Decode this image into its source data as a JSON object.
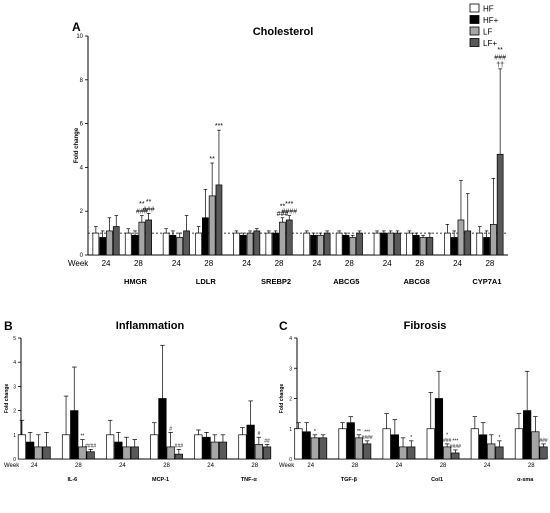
{
  "figure": {
    "bar_colors": [
      "#ffffff",
      "#000000",
      "#a6a6a6",
      "#595959"
    ]
  },
  "chart_data": [
    {
      "id": "A",
      "type": "bar",
      "panel_letter": "A",
      "title": "Cholesterol",
      "ylabel": "Fold change",
      "ylim": [
        0,
        10
      ],
      "yticks": [
        0,
        2,
        4,
        6,
        8,
        10
      ],
      "reference_line": 1,
      "week_label": "Week",
      "legend": {
        "placement": "top-right",
        "entries": [
          {
            "name": "HF",
            "color": "#ffffff"
          },
          {
            "name": "HF+",
            "color": "#000000"
          },
          {
            "name": "LF",
            "color": "#a6a6a6"
          },
          {
            "name": "LF+",
            "color": "#595959"
          }
        ]
      },
      "genes": [
        {
          "name": "HMGR",
          "weeks": [
            {
              "week": "24",
              "values": [
                1.0,
                0.8,
                1.1,
                1.3
              ],
              "errors": [
                0.3,
                0.3,
                0.6,
                0.5
              ],
              "annotations": [
                "",
                "",
                "",
                ""
              ]
            },
            {
              "week": "28",
              "values": [
                1.0,
                0.9,
                1.5,
                1.6
              ],
              "errors": [
                0.2,
                0.2,
                0.3,
                0.3
              ],
              "annotations": [
                "",
                "",
                "**\n###",
                "**\n###"
              ]
            }
          ]
        },
        {
          "name": "LDLR",
          "weeks": [
            {
              "week": "24",
              "values": [
                1.0,
                0.9,
                0.8,
                1.1
              ],
              "errors": [
                0.2,
                0.2,
                0.2,
                0.7
              ],
              "annotations": [
                "",
                "",
                "",
                ""
              ]
            },
            {
              "week": "28",
              "values": [
                1.0,
                1.7,
                2.7,
                3.2
              ],
              "errors": [
                0.3,
                1.3,
                1.5,
                2.5
              ],
              "annotations": [
                "",
                "",
                "**",
                "***"
              ]
            }
          ]
        },
        {
          "name": "SREBP2",
          "weeks": [
            {
              "week": "24",
              "values": [
                1.0,
                0.9,
                1.0,
                1.1
              ],
              "errors": [
                0.1,
                0.1,
                0.1,
                0.1
              ],
              "annotations": [
                "",
                "",
                "",
                ""
              ]
            },
            {
              "week": "28",
              "values": [
                1.0,
                1.0,
                1.5,
                1.6
              ],
              "errors": [
                0.1,
                0.1,
                0.2,
                0.2
              ],
              "annotations": [
                "",
                "",
                "**\n###",
                "***\n####"
              ]
            }
          ]
        },
        {
          "name": "ABCG5",
          "weeks": [
            {
              "week": "24",
              "values": [
                1.0,
                0.9,
                0.9,
                1.0
              ],
              "errors": [
                0.1,
                0.1,
                0.1,
                0.1
              ],
              "annotations": [
                "",
                "",
                "",
                ""
              ]
            },
            {
              "week": "28",
              "values": [
                1.0,
                0.9,
                0.8,
                1.0
              ],
              "errors": [
                0.1,
                0.1,
                0.1,
                0.1
              ],
              "annotations": [
                "",
                "",
                "",
                ""
              ]
            }
          ]
        },
        {
          "name": "ABCG8",
          "weeks": [
            {
              "week": "24",
              "values": [
                1.0,
                1.0,
                1.0,
                1.0
              ],
              "errors": [
                0.1,
                0.1,
                0.1,
                0.1
              ],
              "annotations": [
                "",
                "",
                "",
                ""
              ]
            },
            {
              "week": "28",
              "values": [
                1.0,
                0.9,
                0.8,
                0.8
              ],
              "errors": [
                0.1,
                0.1,
                0.1,
                0.2
              ],
              "annotations": [
                "",
                "",
                "",
                ""
              ]
            }
          ]
        },
        {
          "name": "CYP7A1",
          "weeks": [
            {
              "week": "24",
              "values": [
                1.0,
                0.8,
                1.6,
                1.1
              ],
              "errors": [
                0.4,
                0.3,
                1.8,
                1.7
              ],
              "annotations": [
                "",
                "",
                "",
                ""
              ]
            },
            {
              "week": "28",
              "values": [
                1.0,
                0.8,
                1.4,
                4.6
              ],
              "errors": [
                0.3,
                0.3,
                2.1,
                3.9
              ],
              "annotations": [
                "",
                "",
                "",
                "**\n###\n††"
              ]
            }
          ]
        }
      ]
    },
    {
      "id": "B",
      "type": "bar",
      "panel_letter": "B",
      "title": "Inflammation",
      "ylabel": "Fold change",
      "ylim": [
        0,
        5
      ],
      "yticks": [
        0,
        1,
        2,
        3,
        4,
        5
      ],
      "week_label": "Week",
      "genes": [
        {
          "name": "IL-6",
          "weeks": [
            {
              "week": "24",
              "values": [
                1.0,
                0.7,
                0.5,
                0.5
              ],
              "errors": [
                0.6,
                0.4,
                0.5,
                0.6
              ],
              "annotations": [
                "",
                "",
                "",
                ""
              ]
            },
            {
              "week": "28",
              "values": [
                1.0,
                2.0,
                0.5,
                0.3
              ],
              "errors": [
                1.6,
                1.8,
                0.3,
                0.1
              ],
              "annotations": [
                "",
                "",
                "**",
                "####"
              ]
            }
          ]
        },
        {
          "name": "MCP-1",
          "weeks": [
            {
              "week": "24",
              "values": [
                1.0,
                0.7,
                0.5,
                0.5
              ],
              "errors": [
                0.6,
                0.4,
                0.4,
                0.3
              ],
              "annotations": [
                "",
                "",
                "",
                ""
              ]
            },
            {
              "week": "28",
              "values": [
                1.0,
                2.5,
                0.5,
                0.2
              ],
              "errors": [
                0.5,
                2.2,
                0.6,
                0.2
              ],
              "annotations": [
                "",
                "",
                "#",
                "###"
              ]
            }
          ]
        },
        {
          "name": "TNF-α",
          "weeks": [
            {
              "week": "24",
              "values": [
                1.0,
                0.9,
                0.7,
                0.7
              ],
              "errors": [
                0.2,
                0.2,
                0.3,
                0.3
              ],
              "annotations": [
                "",
                "",
                "",
                ""
              ]
            },
            {
              "week": "28",
              "values": [
                1.0,
                1.4,
                0.6,
                0.5
              ],
              "errors": [
                0.3,
                1.0,
                0.3,
                0.1
              ],
              "annotations": [
                "",
                "",
                "#",
                "##"
              ]
            }
          ]
        }
      ]
    },
    {
      "id": "C",
      "type": "bar",
      "panel_letter": "C",
      "title": "Fibrosis",
      "ylabel": "Fold change",
      "ylim": [
        0,
        4
      ],
      "yticks": [
        0,
        1,
        2,
        3,
        4
      ],
      "week_label": "Week",
      "genes": [
        {
          "name": "TGF-β",
          "weeks": [
            {
              "week": "24",
              "values": [
                1.0,
                0.9,
                0.7,
                0.7
              ],
              "errors": [
                0.2,
                0.3,
                0.1,
                0.1
              ],
              "annotations": [
                "",
                "",
                "*",
                ""
              ]
            },
            {
              "week": "28",
              "values": [
                1.0,
                1.2,
                0.7,
                0.5
              ],
              "errors": [
                0.2,
                0.2,
                0.1,
                0.1
              ],
              "annotations": [
                "",
                "",
                "**",
                "***\n####"
              ]
            }
          ]
        },
        {
          "name": "Col1",
          "weeks": [
            {
              "week": "24",
              "values": [
                1.0,
                0.8,
                0.4,
                0.4
              ],
              "errors": [
                0.5,
                0.5,
                0.3,
                0.2
              ],
              "annotations": [
                "",
                "",
                "",
                "*"
              ]
            },
            {
              "week": "28",
              "values": [
                1.0,
                2.0,
                0.4,
                0.2
              ],
              "errors": [
                1.2,
                0.9,
                0.1,
                0.1
              ],
              "annotations": [
                "",
                "",
                "*\n###",
                "***\n####"
              ]
            }
          ]
        },
        {
          "name": "α-sma",
          "weeks": [
            {
              "week": "24",
              "values": [
                1.0,
                0.8,
                0.5,
                0.4
              ],
              "errors": [
                0.4,
                0.4,
                0.3,
                0.2
              ],
              "annotations": [
                "",
                "",
                "",
                "*"
              ]
            },
            {
              "week": "28",
              "values": [
                1.0,
                1.6,
                0.9,
                0.4
              ],
              "errors": [
                0.5,
                1.3,
                0.5,
                0.1
              ],
              "annotations": [
                "",
                "",
                "",
                "###"
              ]
            }
          ]
        }
      ]
    }
  ]
}
